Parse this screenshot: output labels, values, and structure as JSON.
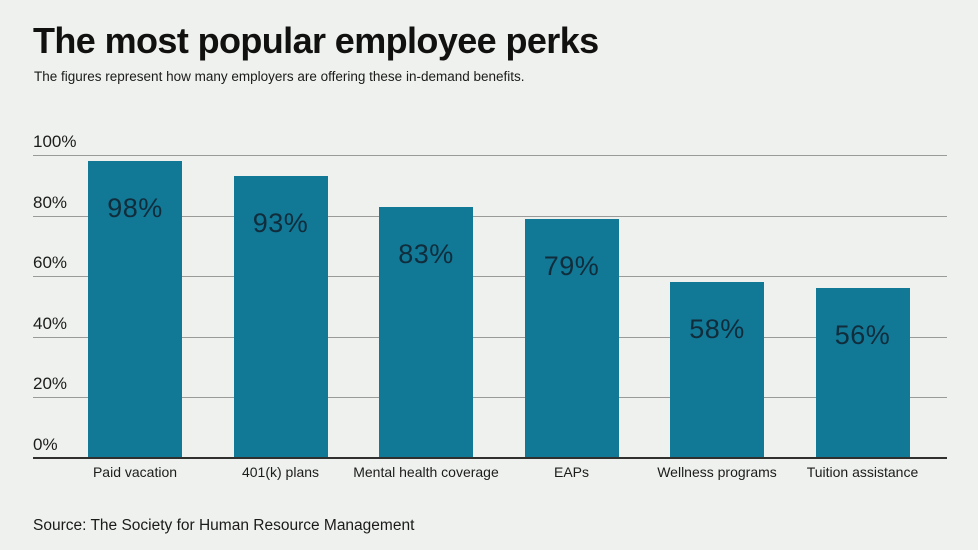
{
  "title": "The most popular employee perks",
  "subtitle": "The figures represent how many employers are offering these in-demand benefits.",
  "source": "Source: The Society for Human Resource Management",
  "colors": {
    "background": "#eef1ee",
    "bar": "#117896",
    "value_label": "#112d3c",
    "gridline": "#9a9b98",
    "axis_baseline": "#30302e"
  },
  "y_axis": {
    "ticks": [
      "100%",
      "80%",
      "60%",
      "40%",
      "20%",
      "0%"
    ],
    "tick_values": [
      100,
      80,
      60,
      40,
      20,
      0
    ]
  },
  "chart_data": {
    "type": "bar",
    "title": "The most popular employee perks",
    "subtitle": "The figures represent how many employers are offering these in-demand benefits.",
    "categories": [
      "Paid vacation",
      "401(k) plans",
      "Mental health coverage",
      "EAPs",
      "Wellness programs",
      "Tuition assistance"
    ],
    "values": [
      98,
      93,
      83,
      79,
      58,
      56
    ],
    "value_labels": [
      "98%",
      "93%",
      "83%",
      "79%",
      "58%",
      "56%"
    ],
    "xlabel": "",
    "ylabel": "",
    "ylim": [
      0,
      100
    ],
    "grid": true,
    "legend": false,
    "source": "Source: The Society for Human Resource Management"
  }
}
